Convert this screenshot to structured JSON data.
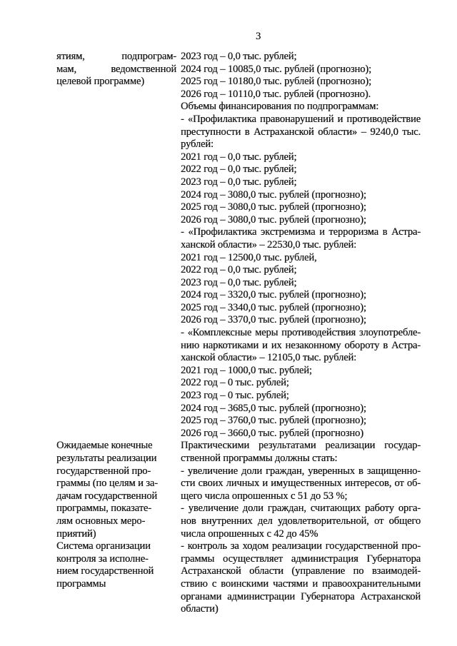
{
  "page": {
    "number": "3"
  },
  "colors": {
    "background": "#ffffff",
    "text": "#1a1a1a"
  },
  "table": {
    "rows": [
      {
        "label_justify": true,
        "label_paragraphs": [
          [
            "ятиям, подпрограм-",
            "мам, ведомственной",
            "целевой программе)"
          ]
        ],
        "value_paragraphs": [
          [
            "2023 год – 0,0 тыс. рублей;"
          ],
          [
            "2024 год – 10085,0 тыс. рублей (прогнозно);"
          ],
          [
            "2025 год – 10180,0 тыс. рублей (прогнозно);"
          ],
          [
            "2026 год – 10110,0 тыс. рублей (прогнозно)."
          ],
          [
            "Объемы финансирования по подпрограммам:"
          ],
          [
            "- «Профилактика правонарушений и противодействие",
            "преступности в Астраханской области» – 9240,0 тыс.",
            "рублей:"
          ],
          [
            "2021 год – 0,0 тыс. рублей;"
          ],
          [
            "2022 год – 0,0 тыс. рублей;"
          ],
          [
            "2023 год – 0,0 тыс. рублей;"
          ],
          [
            "2024 год – 3080,0 тыс. рублей (прогнозно);"
          ],
          [
            "2025 год – 3080,0 тыс. рублей (прогнозно);"
          ],
          [
            "2026 год – 3080,0 тыс. рублей (прогнозно);"
          ],
          [
            "- «Профилактика экстремизма и терроризма в Астра-",
            "ханской области» – 22530,0 тыс. рублей:"
          ],
          [
            "2021 год – 12500,0 тыс. рублей,"
          ],
          [
            "2022 год – 0,0 тыс. рублей;"
          ],
          [
            "2023 год – 0,0 тыс. рублей;"
          ],
          [
            "2024 год – 3320,0 тыс. рублей (прогнозно);"
          ],
          [
            "2025 год – 3340,0 тыс. рублей (прогнозно);"
          ],
          [
            "2026 год – 3370,0 тыс. рублей (прогнозно);"
          ],
          [
            "- «Комплексные меры противодействия злоупотребле-",
            "нию наркотиками и их незаконному обороту в Астра-",
            "ханской области» – 12105,0 тыс. рублей:"
          ],
          [
            "2021 год – 1000,0 тыс. рублей;"
          ],
          [
            "2022 год – 0 тыс. рублей;"
          ],
          [
            "2023 год – 0 тыс. рублей;"
          ],
          [
            "2024 год – 3685,0 тыс. рублей (прогнозно);"
          ],
          [
            "2025 год – 3760,0 тыс. рублей (прогнозно);"
          ],
          [
            "2026 год – 3660,0 тыс. рублей (прогнозно)"
          ]
        ]
      },
      {
        "label_justify": false,
        "label_paragraphs": [
          [
            "Ожидаемые конечные",
            "результаты реализации",
            "государственной про-",
            "граммы (по целям и за-",
            "дачам государственной",
            "программы, показате-",
            "лям основных меро-",
            "приятий)"
          ]
        ],
        "value_paragraphs": [
          [
            "Практическими результатами реализации государ-",
            "ственной программы должны стать:"
          ],
          [
            "- увеличение доли граждан, уверенных в защищенно-",
            "сти своих личных и имущественных интересов, от об-",
            "щего числа опрошенных с 51 до 53 %;"
          ],
          [
            "- увеличение доли граждан, считающих работу орга-",
            "нов внутренних дел удовлетворительной, от общего",
            "числа опрошенных с 42 до 45%"
          ]
        ]
      },
      {
        "label_justify": false,
        "label_paragraphs": [
          [
            "Система организации",
            "контроля за исполне-",
            "нием государственной",
            "программы"
          ]
        ],
        "value_paragraphs": [
          [
            "- контроль за ходом реализации государственной про-",
            "граммы осуществляет администрация Губернатора",
            "Астраханской области (управление по взаимодей-",
            "ствию с воинскими частями и правоохранительными",
            "органами администрации Губернатора Астраханской",
            "области)"
          ]
        ]
      }
    ]
  }
}
